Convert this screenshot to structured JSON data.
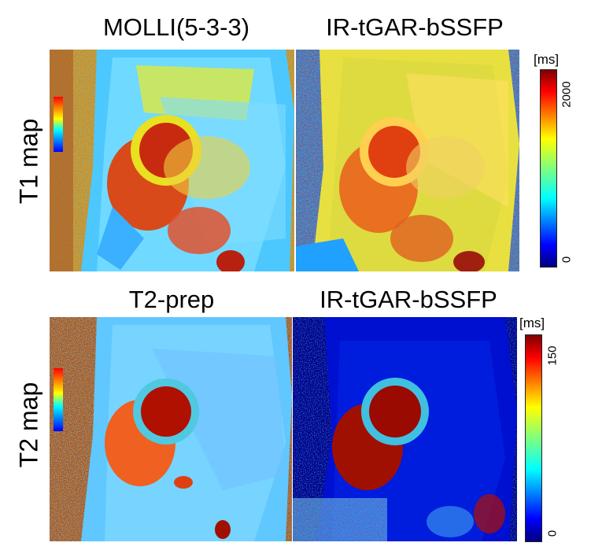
{
  "figure": {
    "columns_top": [
      "MOLLI(5-3-3)",
      "IR-tGAR-bSSFP"
    ],
    "columns_bottom": [
      "T2-prep",
      "IR-tGAR-bSSFP"
    ],
    "rows": [
      "T1 map",
      "T2 map"
    ],
    "colorbar_t1": {
      "unit": "[ms]",
      "min": "0",
      "max": "2000"
    },
    "colorbar_t2": {
      "unit": "[ms]",
      "min": "0",
      "max": "150"
    },
    "colormap": [
      "#00007f",
      "#0000ff",
      "#007fff",
      "#00ffff",
      "#7fff7f",
      "#ffff00",
      "#ff7f00",
      "#ff0000",
      "#7f0000"
    ]
  }
}
